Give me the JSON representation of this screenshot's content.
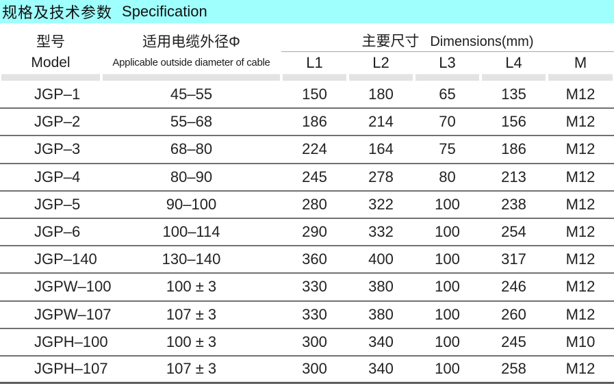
{
  "title": {
    "zh": "规格及技术参数",
    "en": "Specification"
  },
  "colors": {
    "title_bar": "#9ffffd",
    "header_bar_gray": "#e3e3e3",
    "row_rule_gray": "#707070",
    "text": "#1c1c1c"
  },
  "table": {
    "columns": {
      "model": {
        "zh": "型号",
        "en": "Model"
      },
      "diameter": {
        "zh": "适用电缆外径Φ",
        "en": "Applicable outside diameter of cable"
      },
      "dimensions_group": {
        "zh": "主要尺寸",
        "en": "Dimensions(mm)"
      },
      "dimension_subcolumns": [
        "L1",
        "L2",
        "L3",
        "L4",
        "M"
      ]
    },
    "rows": [
      {
        "model": "JGP–1",
        "diameter": "45–55",
        "L1": "150",
        "L2": "180",
        "L3": "65",
        "L4": "135",
        "M": "M12"
      },
      {
        "model": "JGP–2",
        "diameter": "55–68",
        "L1": "186",
        "L2": "214",
        "L3": "70",
        "L4": "156",
        "M": "M12"
      },
      {
        "model": "JGP–3",
        "diameter": "68–80",
        "L1": "224",
        "L2": "164",
        "L3": "75",
        "L4": "186",
        "M": "M12"
      },
      {
        "model": "JGP–4",
        "diameter": "80–90",
        "L1": "245",
        "L2": "278",
        "L3": "80",
        "L4": "213",
        "M": "M12"
      },
      {
        "model": "JGP–5",
        "diameter": "90–100",
        "L1": "280",
        "L2": "322",
        "L3": "100",
        "L4": "238",
        "M": "M12"
      },
      {
        "model": "JGP–6",
        "diameter": "100–114",
        "L1": "290",
        "L2": "332",
        "L3": "100",
        "L4": "254",
        "M": "M12"
      },
      {
        "model": "JGP–140",
        "diameter": "130–140",
        "L1": "360",
        "L2": "400",
        "L3": "100",
        "L4": "317",
        "M": "M12"
      },
      {
        "model": "JGPW–100",
        "diameter": "100 ± 3",
        "L1": "330",
        "L2": "380",
        "L3": "100",
        "L4": "246",
        "M": "M12"
      },
      {
        "model": "JGPW–107",
        "diameter": "107 ± 3",
        "L1": "330",
        "L2": "380",
        "L3": "100",
        "L4": "260",
        "M": "M12"
      },
      {
        "model": "JGPH–100",
        "diameter": "100 ± 3",
        "L1": "300",
        "L2": "340",
        "L3": "100",
        "L4": "245",
        "M": "M10"
      },
      {
        "model": "JGPH–107",
        "diameter": "107 ± 3",
        "L1": "300",
        "L2": "340",
        "L3": "100",
        "L4": "258",
        "M": "M12"
      }
    ]
  }
}
